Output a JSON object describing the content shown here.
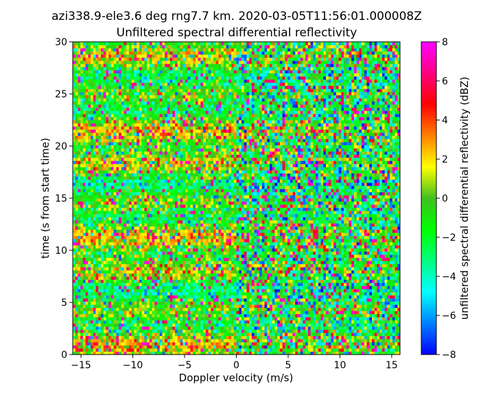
{
  "chart_data": {
    "type": "heatmap",
    "title": "azi338.9-ele3.6 deg rng7.7 km. 2020-03-05T11:56:01.000008Z",
    "subtitle": "Unfiltered spectral differential reflectivity",
    "xlabel": "Doppler velocity (m/s)",
    "ylabel": "time (s from start time)",
    "xlim": [
      -15.8,
      15.8
    ],
    "ylim": [
      0,
      30
    ],
    "x_ticks": [
      -15,
      -10,
      -5,
      0,
      5,
      10,
      15
    ],
    "x_tick_labels": [
      "−15",
      "−10",
      "−5",
      "0",
      "5",
      "10",
      "15"
    ],
    "y_ticks": [
      0,
      5,
      10,
      15,
      20,
      25,
      30
    ],
    "y_tick_labels": [
      "0",
      "5",
      "10",
      "15",
      "20",
      "25",
      "30"
    ],
    "grid": false,
    "grid_size": {
      "cols": 128,
      "rows": 100
    },
    "colorbar": {
      "label": "unfiltered spectral differential reflectivity (dBZ)",
      "vmin": -8,
      "vmax": 8,
      "ticks": [
        -8,
        -6,
        -4,
        -2,
        0,
        2,
        4,
        6,
        8
      ],
      "tick_labels": [
        "−8",
        "−6",
        "−4",
        "−2",
        "0",
        "2",
        "4",
        "6",
        "8"
      ],
      "colormap": "gist_rainbow (reversed)",
      "colors": [
        "#0000ff",
        "#0080ff",
        "#00ffff",
        "#00ff80",
        "#00ff00",
        "#40c020",
        "#ffff00",
        "#ff8000",
        "#ff0000",
        "#ff0080",
        "#ff00ff"
      ]
    },
    "pattern": "noisy values spanning the full range (-8 to 8 dBZ); mostly green/yellow left of 0 m/s with horizontal red/magenta banding, more blue and magenta right of 0 m/s"
  }
}
